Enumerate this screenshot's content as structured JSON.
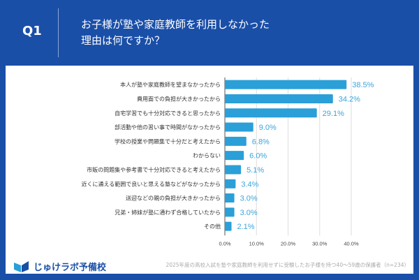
{
  "header": {
    "question_no": "Q1",
    "title_line1": "お子様が塾や家庭教師を利用しなかった",
    "title_line2": "理由は何ですか？"
  },
  "footer": {
    "logo": "じゅけラボ予備校",
    "note": "2025年度の高校入試を塾や家庭教師を利用せずに受験したお子様を持つ40～59歳の保護者（n=234）"
  },
  "colors": {
    "background": "#1a4fa8",
    "bar": "#2a9fd8",
    "label": "#3aa5dc"
  },
  "chart_data": {
    "type": "bar",
    "orientation": "horizontal",
    "xlim": [
      0,
      40
    ],
    "grid": true,
    "ticks": [
      "0.0%",
      "10.0%",
      "20.0%",
      "30.0%",
      "40.0%"
    ],
    "categories": [
      "本人が塾や家庭教師を望まなかったから",
      "費用面での負担が大きかったから",
      "自宅学習でも十分対応できると思ったから",
      "部活動や他の習い事で時間がなかったから",
      "学校の授業や問題集で十分だと考えたから",
      "わからない",
      "市販の問題集や参考書で十分対応できると考えたから",
      "近くに通える範囲で良いと思える塾などがなかったから",
      "送迎などの親の負担が大きかったから",
      "兄弟・姉妹が塾に通わず合格していたから",
      "その他"
    ],
    "values": [
      38.5,
      34.2,
      29.1,
      9.0,
      6.8,
      6.0,
      5.1,
      3.4,
      3.0,
      3.0,
      2.1
    ],
    "labels": [
      "38.5%",
      "34.2%",
      "29.1%",
      "9.0%",
      "6.8%",
      "6.0%",
      "5.1%",
      "3.4%",
      "3.0%",
      "3.0%",
      "2.1%"
    ]
  }
}
